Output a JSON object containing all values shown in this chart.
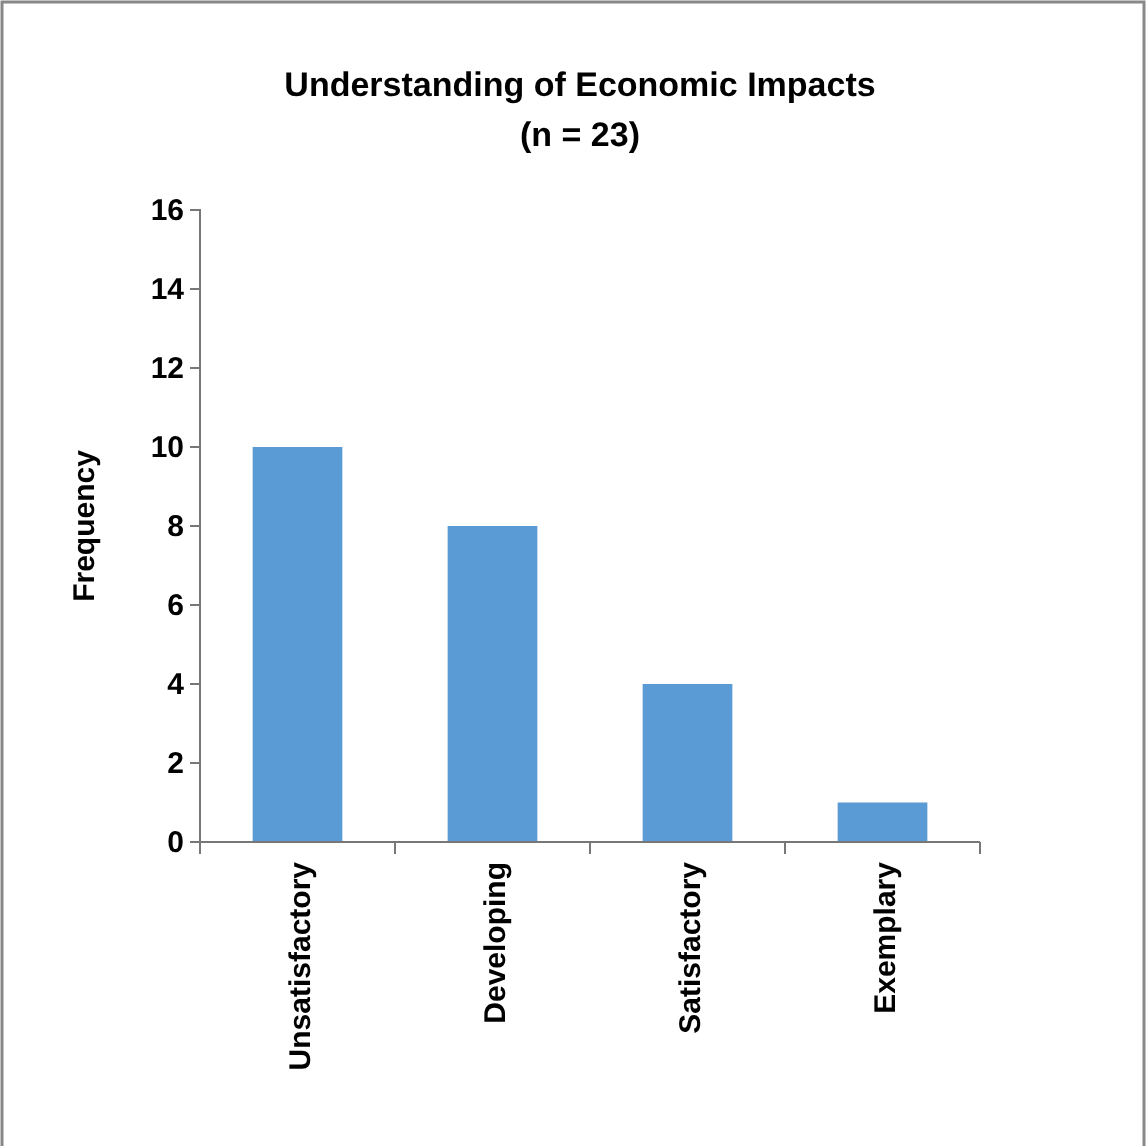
{
  "chart_data": {
    "type": "bar",
    "title": "Understanding of Economic Impacts\n(n = 23)",
    "ylabel": "Frequency",
    "categories": [
      "Unsatisfactory",
      "Developing",
      "Satisfactory",
      "Exemplary"
    ],
    "values": [
      10,
      8,
      4,
      1
    ],
    "color": "#5b9bd5",
    "ylim": [
      0,
      16
    ],
    "yticks": [
      0,
      2,
      4,
      6,
      8,
      10,
      12,
      14,
      16
    ],
    "grid": false
  }
}
